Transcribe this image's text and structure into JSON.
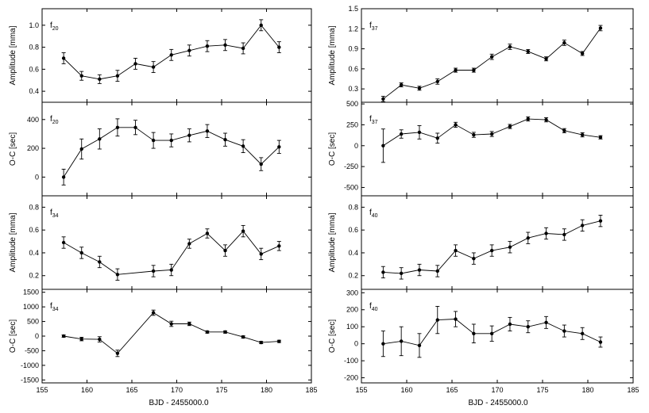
{
  "chart_data": {
    "type": "scatter",
    "xlim": [
      155,
      185
    ],
    "x_ticks": [
      155,
      160,
      165,
      170,
      175,
      180,
      185
    ],
    "columns": [
      {
        "xlabel": "BJD - 2455000.0"
      },
      {
        "xlabel": "BJD - 2455000.0"
      }
    ],
    "panels": [
      {
        "id": "amp-f20",
        "column": 0,
        "row": 0,
        "mode": "Amplitude",
        "mode_sub": "20",
        "ylabel": "Amplitude [mma]",
        "ylim": [
          0.3,
          1.15
        ],
        "y_ticks": [
          0.4,
          0.6,
          0.8,
          1.0
        ],
        "y_tick_labels": [
          "0.4",
          "0.6",
          "0.8",
          "1.0"
        ],
        "x": [
          157.4,
          159.4,
          161.4,
          163.4,
          165.4,
          167.4,
          169.4,
          171.4,
          173.4,
          175.4,
          177.4,
          179.4,
          181.4
        ],
        "y": [
          0.7,
          0.54,
          0.51,
          0.54,
          0.65,
          0.62,
          0.73,
          0.77,
          0.81,
          0.82,
          0.79,
          1.0,
          0.8
        ],
        "err": [
          0.05,
          0.04,
          0.04,
          0.05,
          0.05,
          0.05,
          0.05,
          0.05,
          0.05,
          0.05,
          0.05,
          0.05,
          0.05
        ]
      },
      {
        "id": "oc-f20",
        "column": 0,
        "row": 1,
        "mode": "O-C",
        "mode_sub": "20",
        "ylabel": "O-C [sec]",
        "ylim": [
          -130,
          520
        ],
        "y_ticks": [
          0,
          200,
          400
        ],
        "y_tick_labels": [
          "0",
          "200",
          "400"
        ],
        "x": [
          157.4,
          159.4,
          161.4,
          163.4,
          165.4,
          167.4,
          169.4,
          171.4,
          173.4,
          175.4,
          177.4,
          179.4,
          181.4
        ],
        "y": [
          0,
          195,
          265,
          345,
          345,
          255,
          255,
          290,
          320,
          260,
          215,
          90,
          210
        ],
        "err": [
          55,
          70,
          70,
          60,
          50,
          55,
          45,
          45,
          45,
          45,
          45,
          45,
          45
        ]
      },
      {
        "id": "amp-f34",
        "column": 0,
        "row": 2,
        "mode": "Amplitude",
        "mode_sub": "34",
        "ylabel": "Amplitude [mma]",
        "ylim": [
          0.08,
          0.9
        ],
        "y_ticks": [
          0.2,
          0.4,
          0.6,
          0.8
        ],
        "y_tick_labels": [
          "0.2",
          "0.4",
          "0.6",
          "0.8"
        ],
        "x": [
          157.4,
          159.4,
          161.4,
          163.4,
          167.4,
          169.4,
          171.4,
          173.4,
          175.4,
          177.4,
          179.4,
          181.4
        ],
        "y": [
          0.49,
          0.4,
          0.32,
          0.21,
          0.24,
          0.25,
          0.48,
          0.57,
          0.42,
          0.59,
          0.39,
          0.46
        ],
        "err": [
          0.05,
          0.05,
          0.05,
          0.05,
          0.05,
          0.05,
          0.04,
          0.04,
          0.05,
          0.05,
          0.05,
          0.04
        ]
      },
      {
        "id": "oc-f34",
        "column": 0,
        "row": 3,
        "mode": "O-C",
        "mode_sub": "34",
        "ylabel": "O-C [sec]",
        "ylim": [
          -1600,
          1600
        ],
        "y_ticks": [
          -1500,
          -1000,
          -500,
          0,
          500,
          1000,
          1500
        ],
        "y_tick_labels": [
          "-1500",
          "-1000",
          "-500",
          "0",
          "500",
          "1000",
          "1500"
        ],
        "x": [
          157.4,
          159.4,
          161.4,
          163.4,
          167.4,
          169.4,
          171.4,
          173.4,
          175.4,
          177.4,
          179.4,
          181.4
        ],
        "y": [
          0,
          -100,
          -110,
          -590,
          800,
          420,
          420,
          140,
          140,
          -30,
          -220,
          -180
        ],
        "err": [
          40,
          60,
          90,
          110,
          90,
          90,
          60,
          40,
          40,
          40,
          40,
          40
        ]
      },
      {
        "id": "amp-f37",
        "column": 1,
        "row": 0,
        "mode": "Amplitude",
        "mode_sub": "37",
        "ylabel": "Amplitude [mma]",
        "ylim": [
          0.1,
          1.5
        ],
        "y_ticks": [
          0.3,
          0.6,
          0.9,
          1.2,
          1.5
        ],
        "y_tick_labels": [
          "0.3",
          "0.6",
          "0.9",
          "1.2",
          "1.5"
        ],
        "x": [
          157.4,
          159.4,
          161.4,
          163.4,
          165.4,
          167.4,
          169.4,
          171.4,
          173.4,
          175.4,
          177.4,
          179.4,
          181.4
        ],
        "y": [
          0.15,
          0.36,
          0.31,
          0.41,
          0.58,
          0.58,
          0.78,
          0.93,
          0.86,
          0.75,
          0.99,
          0.83,
          1.21
        ],
        "err": [
          0.04,
          0.03,
          0.03,
          0.04,
          0.03,
          0.03,
          0.04,
          0.04,
          0.03,
          0.03,
          0.04,
          0.03,
          0.04
        ]
      },
      {
        "id": "oc-f37",
        "column": 1,
        "row": 1,
        "mode": "O-C",
        "mode_sub": "37",
        "ylabel": "O-C [sec]",
        "ylim": [
          -600,
          520
        ],
        "y_ticks": [
          -500,
          -250,
          0,
          250,
          500
        ],
        "y_tick_labels": [
          "-500",
          "-250",
          "0",
          "250",
          "500"
        ],
        "x": [
          157.4,
          159.4,
          161.4,
          163.4,
          165.4,
          167.4,
          169.4,
          171.4,
          173.4,
          175.4,
          177.4,
          179.4,
          181.4
        ],
        "y": [
          0,
          140,
          160,
          90,
          250,
          130,
          140,
          230,
          320,
          310,
          180,
          130,
          100
        ],
        "err": [
          200,
          50,
          80,
          60,
          30,
          30,
          30,
          25,
          25,
          25,
          25,
          25,
          20
        ]
      },
      {
        "id": "amp-f40",
        "column": 1,
        "row": 2,
        "mode": "Amplitude",
        "mode_sub": "40",
        "ylabel": "Amplitude [mma]",
        "ylim": [
          0.08,
          0.9
        ],
        "y_ticks": [
          0.2,
          0.4,
          0.6,
          0.8
        ],
        "y_tick_labels": [
          "0.2",
          "0.4",
          "0.6",
          "0.8"
        ],
        "x": [
          157.4,
          159.4,
          161.4,
          163.4,
          165.4,
          167.4,
          169.4,
          171.4,
          173.4,
          175.4,
          177.4,
          179.4,
          181.4
        ],
        "y": [
          0.23,
          0.22,
          0.25,
          0.24,
          0.42,
          0.35,
          0.42,
          0.45,
          0.53,
          0.57,
          0.56,
          0.64,
          0.68
        ],
        "err": [
          0.05,
          0.05,
          0.05,
          0.05,
          0.05,
          0.05,
          0.05,
          0.05,
          0.05,
          0.05,
          0.05,
          0.05,
          0.05
        ]
      },
      {
        "id": "oc-f40",
        "column": 1,
        "row": 3,
        "mode": "O-C",
        "mode_sub": "40",
        "ylabel": "O-C [sec]",
        "ylim": [
          -230,
          320
        ],
        "y_ticks": [
          -200,
          -100,
          0,
          100,
          200,
          300
        ],
        "y_tick_labels": [
          "-200",
          "-100",
          "0",
          "100",
          "200",
          "300"
        ],
        "x": [
          157.4,
          159.4,
          161.4,
          163.4,
          165.4,
          167.4,
          169.4,
          171.4,
          173.4,
          175.4,
          177.4,
          179.4,
          181.4
        ],
        "y": [
          0,
          15,
          -10,
          140,
          145,
          60,
          60,
          115,
          100,
          125,
          75,
          60,
          10
        ],
        "err": [
          75,
          85,
          70,
          80,
          45,
          55,
          45,
          40,
          35,
          35,
          35,
          35,
          30
        ]
      }
    ]
  }
}
